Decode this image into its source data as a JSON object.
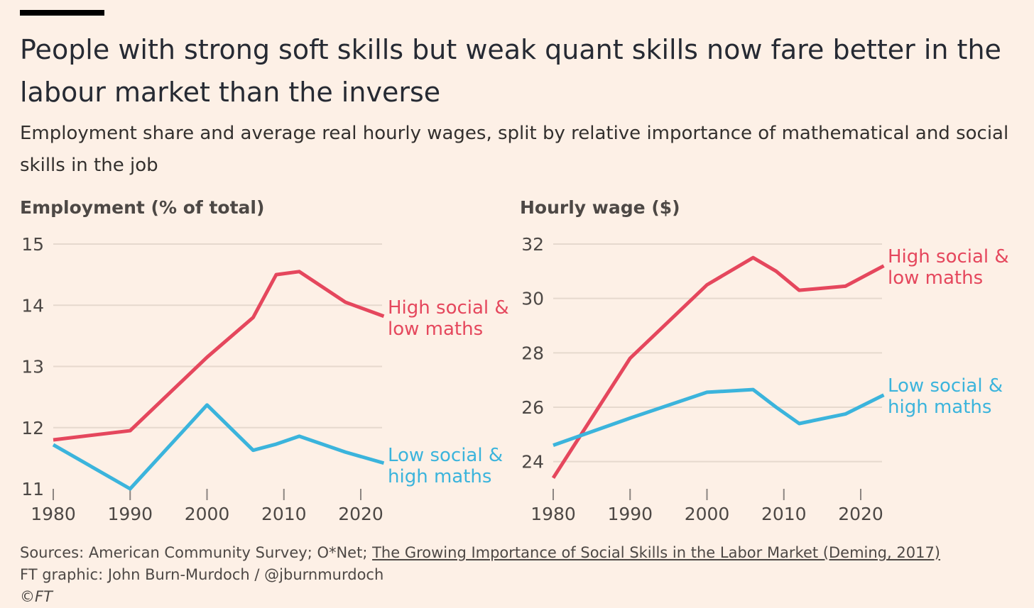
{
  "title": "People with strong soft skills but weak quant skills now fare better in the labour market than the inverse",
  "subtitle": "Employment share and average real hourly wages, split by relative importance of mathematical and social skills in the job",
  "colors": {
    "background": "#fdf0e6",
    "grid": "#e6d9ce",
    "high_social": "#e5475d",
    "low_social": "#3bb4dc",
    "axis_text": "#4d4845"
  },
  "chart_data": [
    {
      "type": "line",
      "ylabel": "Employment (% of total)",
      "ylim": [
        11,
        15
      ],
      "xlim": [
        1980,
        2023
      ],
      "yticks": [
        11,
        12,
        13,
        14,
        15
      ],
      "xticks": [
        1980,
        1990,
        2000,
        2010,
        2020
      ],
      "grid": true,
      "series": [
        {
          "name": "High social & low maths",
          "label_lines": [
            "High social &",
            "low maths"
          ],
          "color_key": "high_social",
          "x": [
            1980,
            1990,
            2000,
            2006,
            2009,
            2012,
            2018,
            2023
          ],
          "y": [
            11.8,
            11.95,
            13.15,
            13.8,
            14.5,
            14.55,
            14.05,
            13.82
          ]
        },
        {
          "name": "Low social & high maths",
          "label_lines": [
            "Low social &",
            "high maths"
          ],
          "color_key": "low_social",
          "x": [
            1980,
            1990,
            2000,
            2006,
            2009,
            2012,
            2018,
            2023
          ],
          "y": [
            11.72,
            11.0,
            12.37,
            11.63,
            11.73,
            11.86,
            11.6,
            11.42
          ]
        }
      ]
    },
    {
      "type": "line",
      "ylabel": "Hourly wage ($)",
      "ylim": [
        23,
        32
      ],
      "xlim": [
        1980,
        2023
      ],
      "yticks": [
        24,
        26,
        28,
        30,
        32
      ],
      "xticks": [
        1980,
        1990,
        2000,
        2010,
        2020
      ],
      "grid": true,
      "series": [
        {
          "name": "High social & low maths",
          "label_lines": [
            "High social &",
            "low maths"
          ],
          "color_key": "high_social",
          "x": [
            1980,
            1990,
            2000,
            2006,
            2009,
            2012,
            2018,
            2023
          ],
          "y": [
            23.4,
            27.8,
            30.5,
            31.5,
            31.0,
            30.3,
            30.45,
            31.2
          ]
        },
        {
          "name": "Low social & high maths",
          "label_lines": [
            "Low social &",
            "high maths"
          ],
          "color_key": "low_social",
          "x": [
            1980,
            1990,
            2000,
            2006,
            2009,
            2012,
            2018,
            2023
          ],
          "y": [
            24.6,
            25.6,
            26.55,
            26.65,
            26.0,
            25.4,
            25.75,
            26.45
          ]
        }
      ]
    }
  ],
  "footer": {
    "sources_prefix": "Sources: American Community Survey; O*Net; ",
    "sources_link": "The Growing Importance of Social Skills in the Labor Market (Deming, 2017)",
    "credit": "FT graphic: John Burn-Murdoch / @jburnmurdoch",
    "copyright": "©FT"
  }
}
